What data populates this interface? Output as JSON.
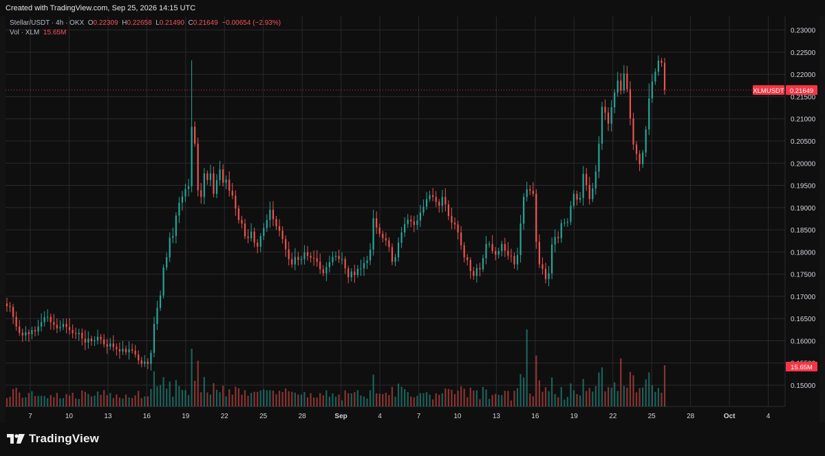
{
  "header": {
    "created_text": "Created with TradingView.com, Sep 25, 2026 14:15 UTC"
  },
  "legend": {
    "symbol_line": "Stellar/USDT · 4h · OKX",
    "o_label": "O",
    "o_value": "0.22309",
    "h_label": "H",
    "h_value": "0.22658",
    "l_label": "L",
    "l_value": "0.21490",
    "c_label": "C",
    "c_value": "0.21649",
    "change": "−0.00654 (−2.93%)",
    "vol_label": "Vol · XLM",
    "vol_value": "15.65M"
  },
  "badges": {
    "symbol": "XLMUSDT",
    "price": "0.21649",
    "volume": "15.65M"
  },
  "brand": {
    "name": "TradingView"
  },
  "colors": {
    "up": "#26a69a",
    "down": "#ef5350",
    "grid": "#2a2a2e",
    "axis_text": "#d1d4dc",
    "badge": "#f23645"
  },
  "chart_data": {
    "type": "candlestick",
    "title": "Stellar/USDT · 4h · OKX",
    "y_ticks": [
      "0.23000",
      "0.22500",
      "0.22000",
      "0.21500",
      "0.21000",
      "0.20500",
      "0.20000",
      "0.19500",
      "0.19000",
      "0.18500",
      "0.18000",
      "0.17500",
      "0.17000",
      "0.16500",
      "0.16000",
      "0.15500",
      "0.15000"
    ],
    "y_range": [
      0.1452,
      0.2318
    ],
    "x_ticks": [
      "7",
      "10",
      "13",
      "16",
      "19",
      "22",
      "25",
      "28",
      "Sep",
      "4",
      "7",
      "10",
      "13",
      "16",
      "19",
      "22",
      "25",
      "28",
      "Oct",
      "4"
    ],
    "last_price": 0.21649,
    "last_volume": "15.65M",
    "grid": true,
    "close_series": [
      0.1678,
      0.1676,
      0.1654,
      0.1632,
      0.1618,
      0.1612,
      0.1619,
      0.1615,
      0.1624,
      0.1621,
      0.1632,
      0.1642,
      0.1653,
      0.1654,
      0.1642,
      0.1636,
      0.1628,
      0.1631,
      0.1638,
      0.1631,
      0.1624,
      0.1617,
      0.1615,
      0.1618,
      0.1605,
      0.1596,
      0.1605,
      0.1599,
      0.1601,
      0.1609,
      0.1603,
      0.1592,
      0.1587,
      0.1594,
      0.1586,
      0.1581,
      0.1576,
      0.1582,
      0.1574,
      0.1581,
      0.1578,
      0.1569,
      0.1556,
      0.1548,
      0.1553,
      0.1548,
      0.1573,
      0.1638,
      0.1674,
      0.1702,
      0.1765,
      0.1788,
      0.1832,
      0.1836,
      0.1882,
      0.1911,
      0.1925,
      0.1942,
      0.1948,
      0.2082,
      0.2044,
      0.1939,
      0.1924,
      0.1977,
      0.1962,
      0.1977,
      0.1931,
      0.1962,
      0.1986,
      0.1956,
      0.1963,
      0.1938,
      0.1927,
      0.1898,
      0.1872,
      0.1864,
      0.1835,
      0.1831,
      0.1846,
      0.1821,
      0.1812,
      0.1836,
      0.1854,
      0.1872,
      0.1895,
      0.1874,
      0.1858,
      0.1848,
      0.1829,
      0.1806,
      0.1784,
      0.1772,
      0.1789,
      0.1782,
      0.1784,
      0.1799,
      0.1791,
      0.1787,
      0.1786,
      0.1778,
      0.1761,
      0.1752,
      0.1766,
      0.1777,
      0.1789,
      0.1791,
      0.1784,
      0.1784,
      0.1763,
      0.1743,
      0.1756,
      0.1748,
      0.1762,
      0.1763,
      0.1775,
      0.1781,
      0.1805,
      0.1876,
      0.1855,
      0.1841,
      0.1831,
      0.1826,
      0.1811,
      0.1778,
      0.1788,
      0.1821,
      0.1844,
      0.1863,
      0.1873,
      0.1869,
      0.1861,
      0.1871,
      0.1889,
      0.1902,
      0.1919,
      0.1928,
      0.1924,
      0.1913,
      0.1904,
      0.1924,
      0.1907,
      0.1881,
      0.1866,
      0.1862,
      0.1844,
      0.1815,
      0.1788,
      0.1782,
      0.1757,
      0.1746,
      0.1764,
      0.1761,
      0.1786,
      0.1818,
      0.1818,
      0.1802,
      0.1794,
      0.1802,
      0.1818,
      0.1803,
      0.1792,
      0.1791,
      0.1772,
      0.1793,
      0.1864,
      0.1924,
      0.1941,
      0.1938,
      0.1931,
      0.1823,
      0.1772,
      0.1762,
      0.1739,
      0.1752,
      0.1817,
      0.1834,
      0.1831,
      0.1865,
      0.1866,
      0.1868,
      0.1904,
      0.1931,
      0.1918,
      0.1922,
      0.1976,
      0.1951,
      0.1919,
      0.1943,
      0.1981,
      0.2044,
      0.2127,
      0.2114,
      0.2089,
      0.2126,
      0.2159,
      0.2186,
      0.2164,
      0.2202,
      0.2167,
      0.2101,
      0.2042,
      0.2021,
      0.1998,
      0.2024,
      0.2076,
      0.2146,
      0.2184,
      0.2206,
      0.2231,
      0.2226,
      0.2165
    ]
  }
}
